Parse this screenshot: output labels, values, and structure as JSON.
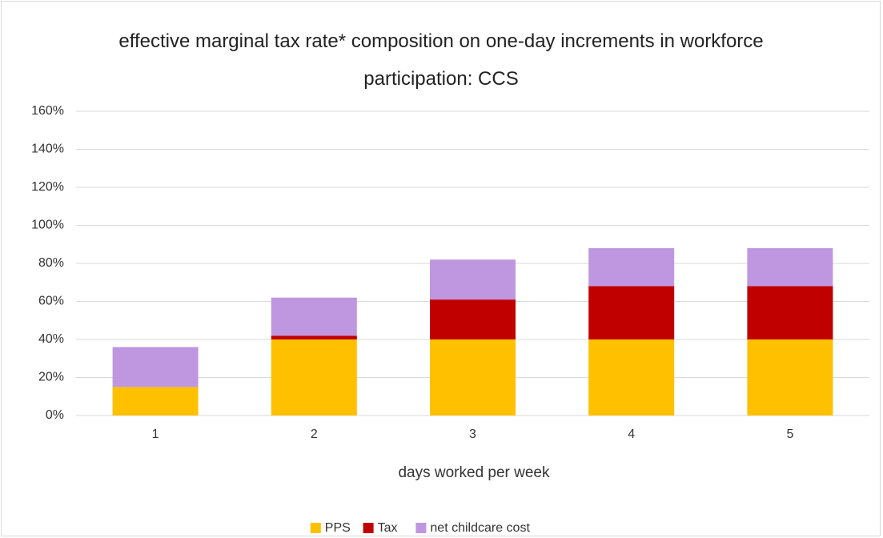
{
  "chart_data": {
    "type": "stacked_bar",
    "title": "effective marginal tax rate* composition on one-day increments in workforce participation: CCS",
    "x_label": "days worked per week",
    "categories": [
      "1",
      "2",
      "3",
      "4",
      "5"
    ],
    "series": [
      {
        "name": "PPS",
        "color": "#ffc000",
        "values": [
          15,
          40,
          40,
          40,
          40
        ]
      },
      {
        "name": "Tax",
        "color": "#c00000",
        "values": [
          0,
          2,
          21,
          28,
          28
        ]
      },
      {
        "name": "net childcare cost",
        "color": "#bf97e0",
        "values": [
          21,
          20,
          21,
          20,
          20
        ]
      }
    ],
    "ylim": [
      0,
      160
    ],
    "yticks": [
      {
        "value": 0,
        "label": "0%"
      },
      {
        "value": 20,
        "label": "20%"
      },
      {
        "value": 40,
        "label": "40%"
      },
      {
        "value": 60,
        "label": "60%"
      },
      {
        "value": 80,
        "label": "80%"
      },
      {
        "value": 100,
        "label": "100%"
      },
      {
        "value": 120,
        "label": "120%"
      },
      {
        "value": 140,
        "label": "140%"
      },
      {
        "value": 160,
        "label": "160%"
      }
    ],
    "grid": true,
    "legend": "bottom"
  }
}
